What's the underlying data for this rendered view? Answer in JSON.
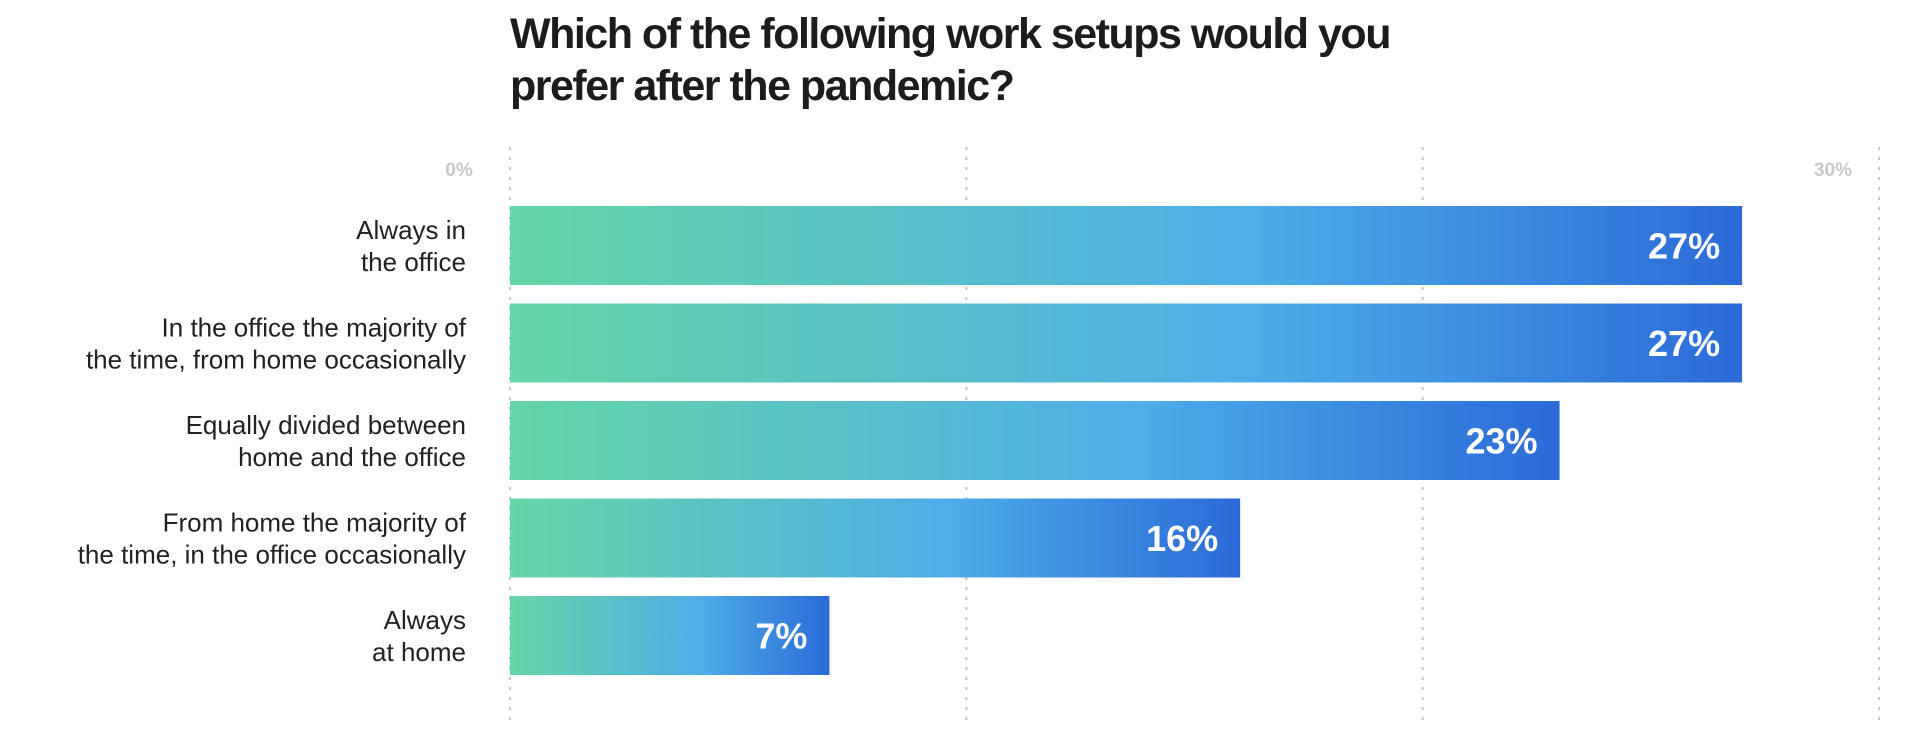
{
  "chart_data": {
    "type": "bar",
    "orientation": "horizontal",
    "title_lines": [
      "Which of the following work setups would you",
      "prefer after the pandemic?"
    ],
    "categories": [
      [
        "Always in",
        "the office"
      ],
      [
        "In the office the majority of",
        "the time, from home occasionally"
      ],
      [
        "Equally divided between",
        "home and the office"
      ],
      [
        "From home the majority of",
        "the time, in the office occasionally"
      ],
      [
        "Always",
        "at home"
      ]
    ],
    "values": [
      27,
      27,
      23,
      16,
      7
    ],
    "value_labels": [
      "27%",
      "27%",
      "23%",
      "16%",
      "7%"
    ],
    "xlim": [
      0,
      30
    ],
    "tick_labels": [
      {
        "value": 0,
        "label": "0%"
      },
      {
        "value": 30,
        "label": "30%"
      }
    ],
    "gridline_values": [
      0,
      10,
      20,
      30
    ],
    "grid": true,
    "gradient_colors": [
      "#64d6a7",
      "#4daee8",
      "#2b6ad8"
    ]
  }
}
